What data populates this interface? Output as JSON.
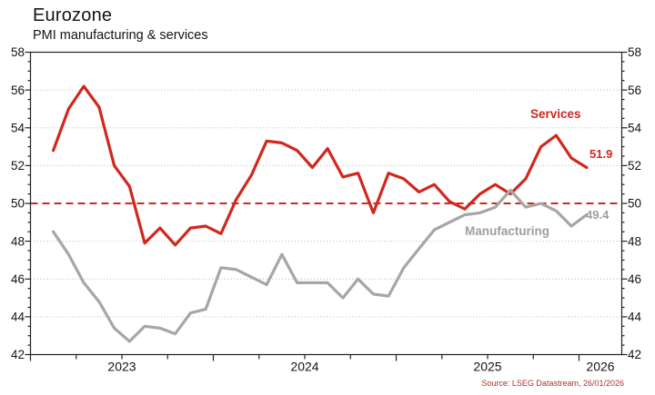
{
  "chart_data": {
    "type": "line",
    "title": "Eurozone",
    "subtitle": "PMI manufacturing & services",
    "x_start_month": "2023-02",
    "x_end_month": "2026-01",
    "x_tick_labels": [
      "2023",
      "2024",
      "2025",
      "2026"
    ],
    "x_minor_tick": "quarterly",
    "ylim": [
      42,
      58
    ],
    "y_tick_step": 2,
    "y_minor_tick_step": 0.5,
    "y_tick_labels": [
      "58",
      "56",
      "54",
      "52",
      "50",
      "48",
      "46",
      "44",
      "42"
    ],
    "grid": "horizontal-dotted",
    "grid_color": "#b8b8b8",
    "axis_color": "#222222",
    "legend_position": "inline-labels",
    "reference_line": {
      "value": 50,
      "style": "dashed",
      "color": "#d0281e"
    },
    "series": [
      {
        "name": "Services",
        "color": "#d0281e",
        "end_label": "51.9",
        "values": [
          52.8,
          55.0,
          56.2,
          55.1,
          52.0,
          50.9,
          47.9,
          48.7,
          47.8,
          48.7,
          48.8,
          48.4,
          50.2,
          51.5,
          53.3,
          53.2,
          52.8,
          51.9,
          52.9,
          51.4,
          51.6,
          49.5,
          51.6,
          51.3,
          50.6,
          51.0,
          50.1,
          49.7,
          50.5,
          51.0,
          50.5,
          51.3,
          53.0,
          53.6,
          52.4,
          51.9
        ]
      },
      {
        "name": "Manufacturing",
        "color": "#a6a6a6",
        "label_color": "#9e9e9e",
        "end_label": "49.4",
        "values": [
          48.5,
          47.3,
          45.8,
          44.8,
          43.4,
          42.7,
          43.5,
          43.4,
          43.1,
          44.2,
          44.4,
          46.6,
          46.5,
          46.1,
          45.7,
          47.3,
          45.8,
          45.8,
          45.8,
          45.0,
          46.0,
          45.2,
          45.1,
          46.6,
          47.6,
          48.6,
          49.0,
          49.4,
          49.5,
          49.8,
          50.7,
          49.8,
          50.0,
          49.6,
          48.8,
          49.4
        ]
      }
    ],
    "source": "Source: LSEG Datastream, 26/01/2026",
    "source_color": "#b03030"
  }
}
